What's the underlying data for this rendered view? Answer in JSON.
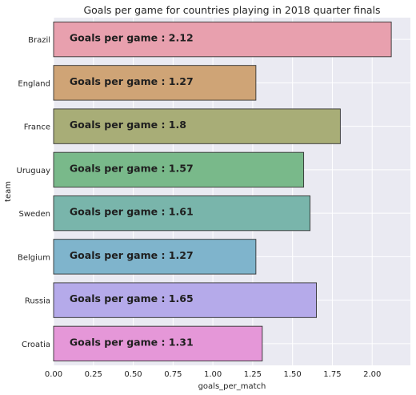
{
  "chart_data": {
    "type": "bar",
    "orientation": "horizontal",
    "title": "Goals per game for countries playing in 2018 quarter finals",
    "xlabel": "goals_per_match",
    "ylabel": "team",
    "categories": [
      "Brazil",
      "England",
      "France",
      "Uruguay",
      "Sweden",
      "Belgium",
      "Russia",
      "Croatia"
    ],
    "values": [
      2.12,
      1.27,
      1.8,
      1.57,
      1.61,
      1.27,
      1.65,
      1.31
    ],
    "bar_labels": [
      "Goals per game : 2.12",
      "Goals per game : 1.27",
      "Goals per game : 1.8",
      "Goals per game : 1.57",
      "Goals per game : 1.61",
      "Goals per game : 1.27",
      "Goals per game : 1.65",
      "Goals per game : 1.31"
    ],
    "colors": [
      "#e8a0ae",
      "#cfa476",
      "#a8ad77",
      "#79b98a",
      "#79b5ab",
      "#7fb4cc",
      "#b5aaea",
      "#e597d8"
    ],
    "xticks": [
      "0.00",
      "0.25",
      "0.50",
      "0.75",
      "1.00",
      "1.25",
      "1.50",
      "1.75",
      "2.00"
    ],
    "xlim": [
      0,
      2.24
    ],
    "grid": true,
    "background": "#eaeaf2"
  }
}
